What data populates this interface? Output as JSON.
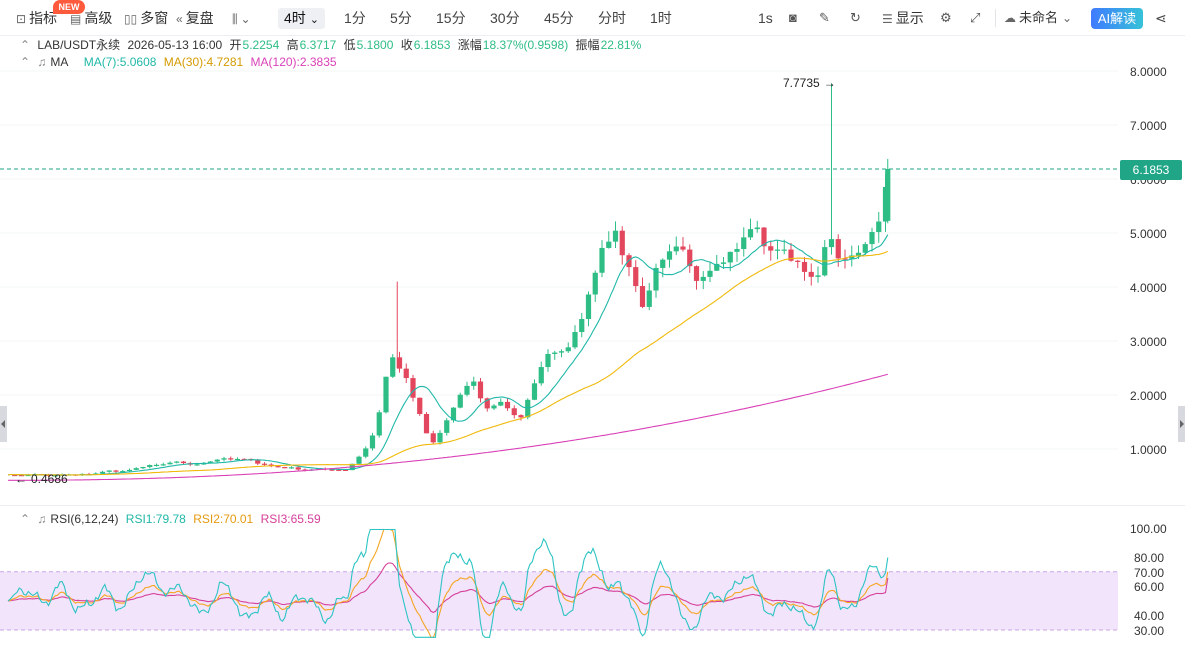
{
  "toolbar": {
    "indicators_label": "指标",
    "new_badge": "NEW",
    "advanced_label": "高级",
    "multi_window_label": "多窗",
    "replay_label": "复盘",
    "timeframe_active": "4时",
    "timeframes": [
      "1分",
      "5分",
      "15分",
      "30分",
      "45分",
      "分时",
      "1时"
    ],
    "speed_label": "1s",
    "display_label": "显示",
    "layout_name": "未命名",
    "ai_label": "AI解读"
  },
  "info": {
    "symbol": "LAB/USDT永续",
    "datetime": "2026-05-13 16:00",
    "open_label": "开",
    "open": "5.2254",
    "high_label": "高",
    "high": "6.3717",
    "low_label": "低",
    "low": "5.1800",
    "close_label": "收",
    "close": "6.1853",
    "change_label": "涨幅",
    "change": "18.37%(0.9598)",
    "amp_label": "振幅",
    "amp": "22.81%"
  },
  "ma_legend": {
    "name": "MA",
    "ma7": "MA(7):5.0608",
    "ma30": "MA(30):4.7281",
    "ma120": "MA(120):2.3835"
  },
  "rsi_legend": {
    "name": "RSI(6,12,24)",
    "rsi1": "RSI1:79.78",
    "rsi2": "RSI2:70.01",
    "rsi3": "RSI3:65.59"
  },
  "labels": {
    "current_price": "6.1853",
    "high_marker": "7.7735",
    "low_marker": "0.4686"
  },
  "colors": {
    "up": "#2ebd85",
    "down": "#e2475d",
    "ma7": "#20b8a8",
    "ma30": "#f0b90b",
    "ma120": "#d942b8",
    "rsi1": "#2ec4c4",
    "rsi2": "#f5a623",
    "rsi3": "#d6409a",
    "rsi_band": "#f1e4fb"
  },
  "chart_data": [
    {
      "type": "candlestick",
      "title": "LAB/USDT永续 4时",
      "y_ticks": [
        "8.0000",
        "7.0000",
        "6.0000",
        "5.0000",
        "4.0000",
        "3.0000",
        "2.0000",
        "1.0000"
      ],
      "ylim": [
        0.4,
        8.2
      ],
      "high": 7.7735,
      "low": 0.4686,
      "last": 6.1853,
      "ma7_last": 5.0608,
      "ma30_last": 4.7281,
      "ma120_last": 2.3835
    },
    {
      "type": "line",
      "title": "RSI(6,12,24)",
      "y_ticks": [
        "100.00",
        "80.00",
        "70.00",
        "60.00",
        "40.00",
        "30.00"
      ],
      "ylim": [
        24,
        103
      ],
      "band": [
        30,
        70
      ],
      "series": [
        {
          "name": "RSI1",
          "last": 79.78
        },
        {
          "name": "RSI2",
          "last": 70.01
        },
        {
          "name": "RSI3",
          "last": 65.59
        }
      ]
    }
  ]
}
